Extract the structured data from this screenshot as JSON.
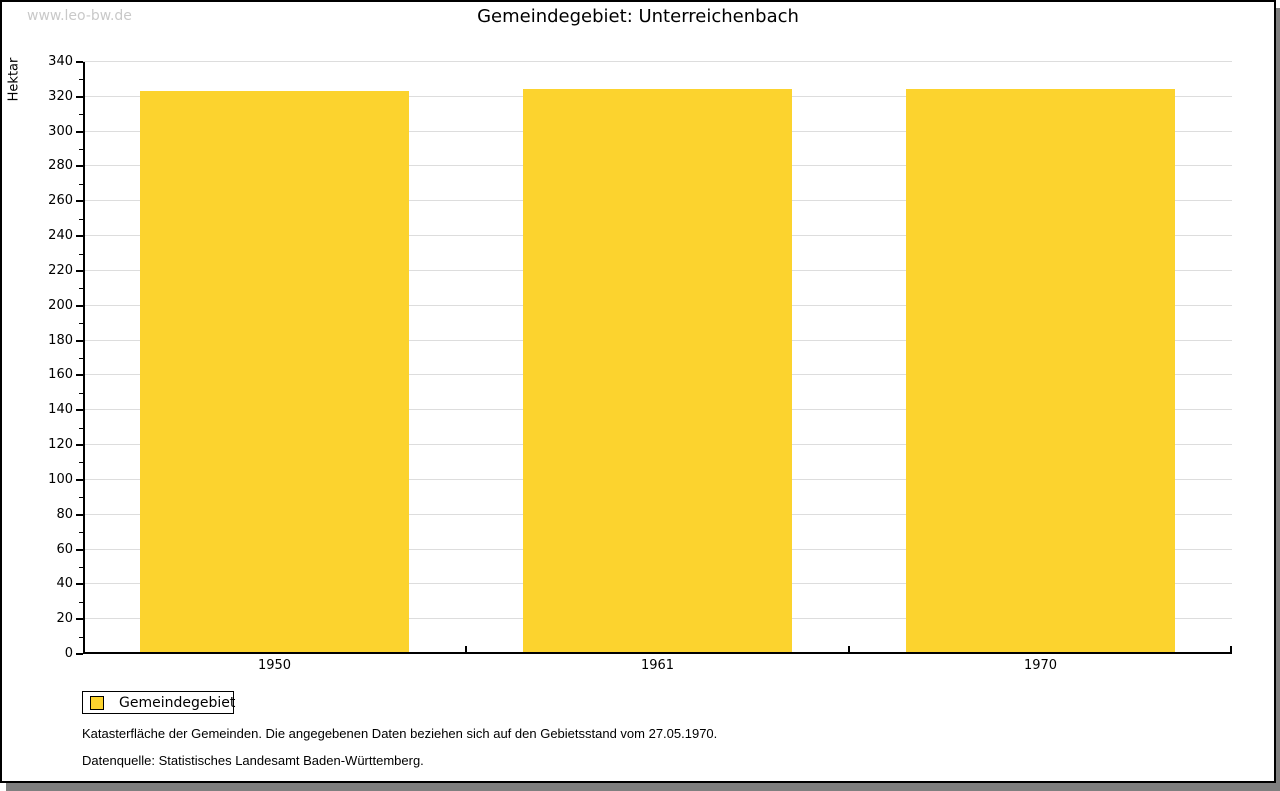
{
  "watermark": "www.leo-bw.de",
  "title": "Gemeindegebiet: Unterreichenbach",
  "footer": {
    "line1": "Katasterfläche der Gemeinden. Die angegebenen Daten beziehen sich auf den Gebietsstand vom 27.05.1970.",
    "line2": "Datenquelle: Statistisches Landesamt Baden-Württemberg."
  },
  "colors": {
    "bar": "#FCD32E",
    "grid": "#DDDDDD",
    "axis": "#000000",
    "watermark": "#C9C9C9",
    "frame_shadow": "#7F7F7F",
    "background": "#FFFFFF"
  },
  "chart_data": {
    "type": "bar",
    "title": "Gemeindegebiet: Unterreichenbach",
    "series_name": "Gemeindegebiet",
    "categories": [
      "1950",
      "1961",
      "1970"
    ],
    "values": [
      323,
      324,
      324
    ],
    "xlabel": "",
    "ylabel": "Hektar",
    "unit": "Hektar",
    "ylim": [
      0,
      340
    ],
    "ytick_step": 20,
    "ytick_minor_step": 10,
    "grid": true,
    "legend_position": "bottom-left",
    "bar_color": "#FCD32E"
  }
}
